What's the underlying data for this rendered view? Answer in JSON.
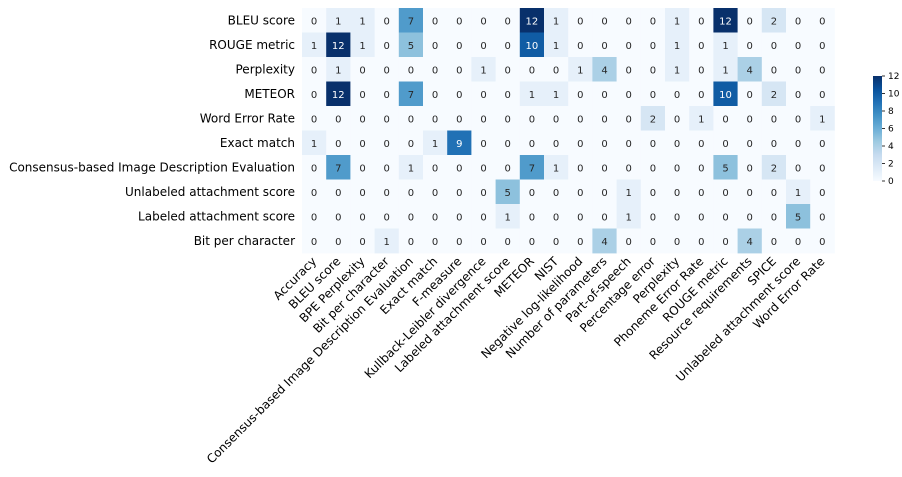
{
  "chart_data": {
    "type": "heatmap",
    "title": "",
    "xlabel": "",
    "ylabel": "",
    "rows": [
      "BLEU score",
      "ROUGE metric",
      "Perplexity",
      "METEOR",
      "Word Error Rate",
      "Exact match",
      "Consensus-based Image Description Evaluation",
      "Unlabeled attachment score",
      "Labeled attachment score",
      "Bit per character"
    ],
    "columns": [
      "Accuracy",
      "BLEU score",
      "BPE Perplexity",
      "Bit per character",
      "Consensus-based Image Description Evaluation",
      "Exact match",
      "F-measure",
      "Kullback-Leibler divergence",
      "Labeled attachment score",
      "METEOR",
      "NIST",
      "Negative log-likelihood",
      "Number of parameters",
      "Part-of-speech",
      "Percentage error",
      "Perplexity",
      "Phoneme Error Rate",
      "ROUGE metric",
      "Resource requirements",
      "SPICE",
      "Unlabeled attachment score",
      "Word Error Rate"
    ],
    "values": [
      [
        0,
        1,
        1,
        0,
        7,
        0,
        0,
        0,
        0,
        12,
        1,
        0,
        0,
        0,
        0,
        1,
        0,
        12,
        0,
        2,
        0,
        0
      ],
      [
        1,
        12,
        1,
        0,
        5,
        0,
        0,
        0,
        0,
        10,
        1,
        0,
        0,
        0,
        0,
        1,
        0,
        1,
        0,
        0,
        0,
        0
      ],
      [
        0,
        1,
        0,
        0,
        0,
        0,
        0,
        1,
        0,
        0,
        0,
        1,
        4,
        0,
        0,
        1,
        0,
        1,
        4,
        0,
        0,
        0
      ],
      [
        0,
        12,
        0,
        0,
        7,
        0,
        0,
        0,
        0,
        1,
        1,
        0,
        0,
        0,
        0,
        0,
        0,
        10,
        0,
        2,
        0,
        0
      ],
      [
        0,
        0,
        0,
        0,
        0,
        0,
        0,
        0,
        0,
        0,
        0,
        0,
        0,
        0,
        2,
        0,
        1,
        0,
        0,
        0,
        0,
        1
      ],
      [
        1,
        0,
        0,
        0,
        0,
        1,
        9,
        0,
        0,
        0,
        0,
        0,
        0,
        0,
        0,
        0,
        0,
        0,
        0,
        0,
        0,
        0
      ],
      [
        0,
        7,
        0,
        0,
        1,
        0,
        0,
        0,
        0,
        7,
        1,
        0,
        0,
        0,
        0,
        0,
        0,
        5,
        0,
        2,
        0,
        0
      ],
      [
        0,
        0,
        0,
        0,
        0,
        0,
        0,
        0,
        5,
        0,
        0,
        0,
        0,
        1,
        0,
        0,
        0,
        0,
        0,
        0,
        1,
        0
      ],
      [
        0,
        0,
        0,
        0,
        0,
        0,
        0,
        0,
        1,
        0,
        0,
        0,
        0,
        1,
        0,
        0,
        0,
        0,
        0,
        0,
        5,
        0
      ],
      [
        0,
        0,
        0,
        1,
        0,
        0,
        0,
        0,
        0,
        0,
        0,
        0,
        4,
        0,
        0,
        0,
        0,
        0,
        4,
        0,
        0,
        0
      ]
    ],
    "colorscale": {
      "min": 0,
      "max": 12,
      "ticks": [
        0,
        2,
        4,
        6,
        8,
        10,
        12
      ],
      "stops": [
        "#f7fbff",
        "#deebf7",
        "#c6dbef",
        "#9ecae1",
        "#6baed6",
        "#4292c6",
        "#2171b5",
        "#08519c",
        "#08306b"
      ]
    },
    "colorbar": "right",
    "grid": false
  }
}
